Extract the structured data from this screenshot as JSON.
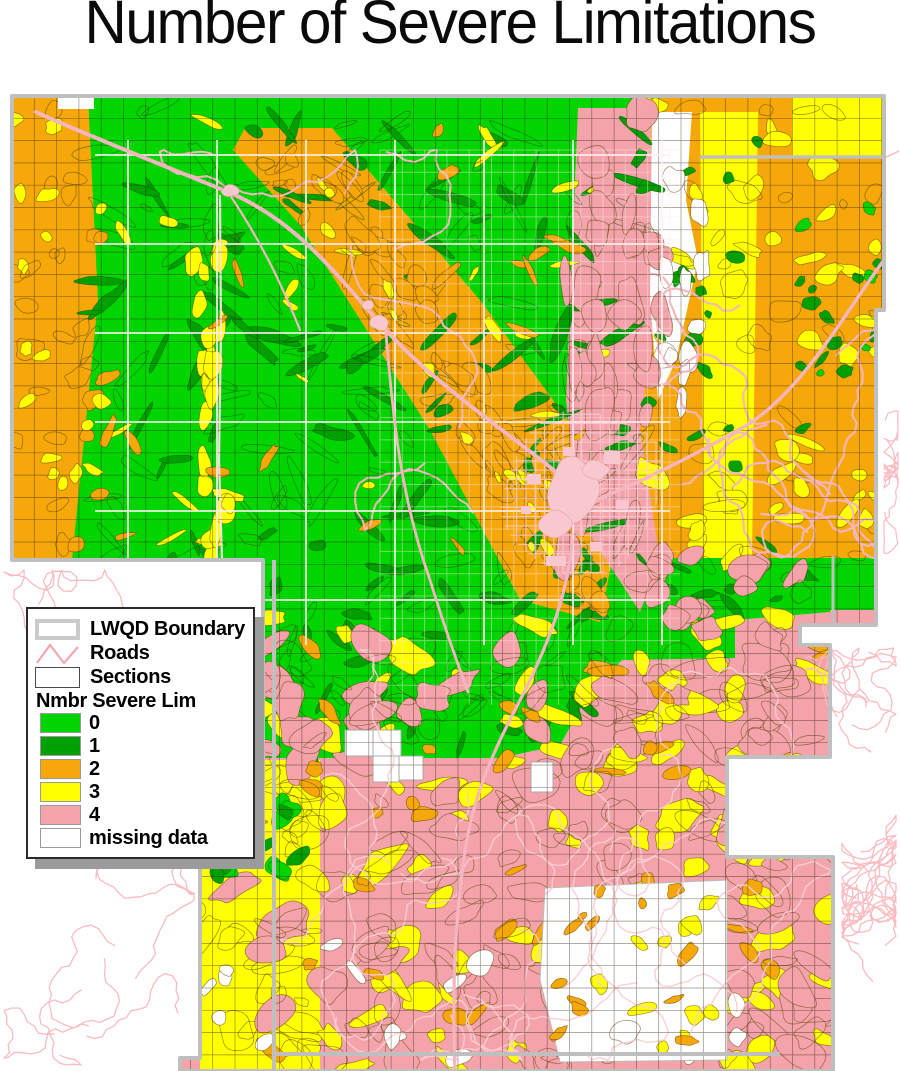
{
  "title": "Number of Severe Limitations",
  "legend": {
    "items": [
      {
        "label": "LWQD Boundary",
        "symbol": "boundary-swatch"
      },
      {
        "label": "Roads",
        "symbol": "roads-line"
      },
      {
        "label": "Sections",
        "symbol": "sections-swatch"
      }
    ],
    "section_header": "Nmbr Severe Lim",
    "classes": [
      {
        "label": "0",
        "color": "#00D500"
      },
      {
        "label": "1",
        "color": "#00A000"
      },
      {
        "label": "2",
        "color": "#F6A70A"
      },
      {
        "label": "3",
        "color": "#FFFF00"
      },
      {
        "label": "4",
        "color": "#F3A3A9"
      },
      {
        "label": "missing data",
        "color": "#FFFFFF"
      }
    ]
  },
  "map": {
    "colors": {
      "road_pink": "#F5B6BF",
      "urban_pink": "#F8C8CE",
      "boundary_gray": "#BFBFBF",
      "outside_stream_pink": "#FABBC1"
    }
  }
}
